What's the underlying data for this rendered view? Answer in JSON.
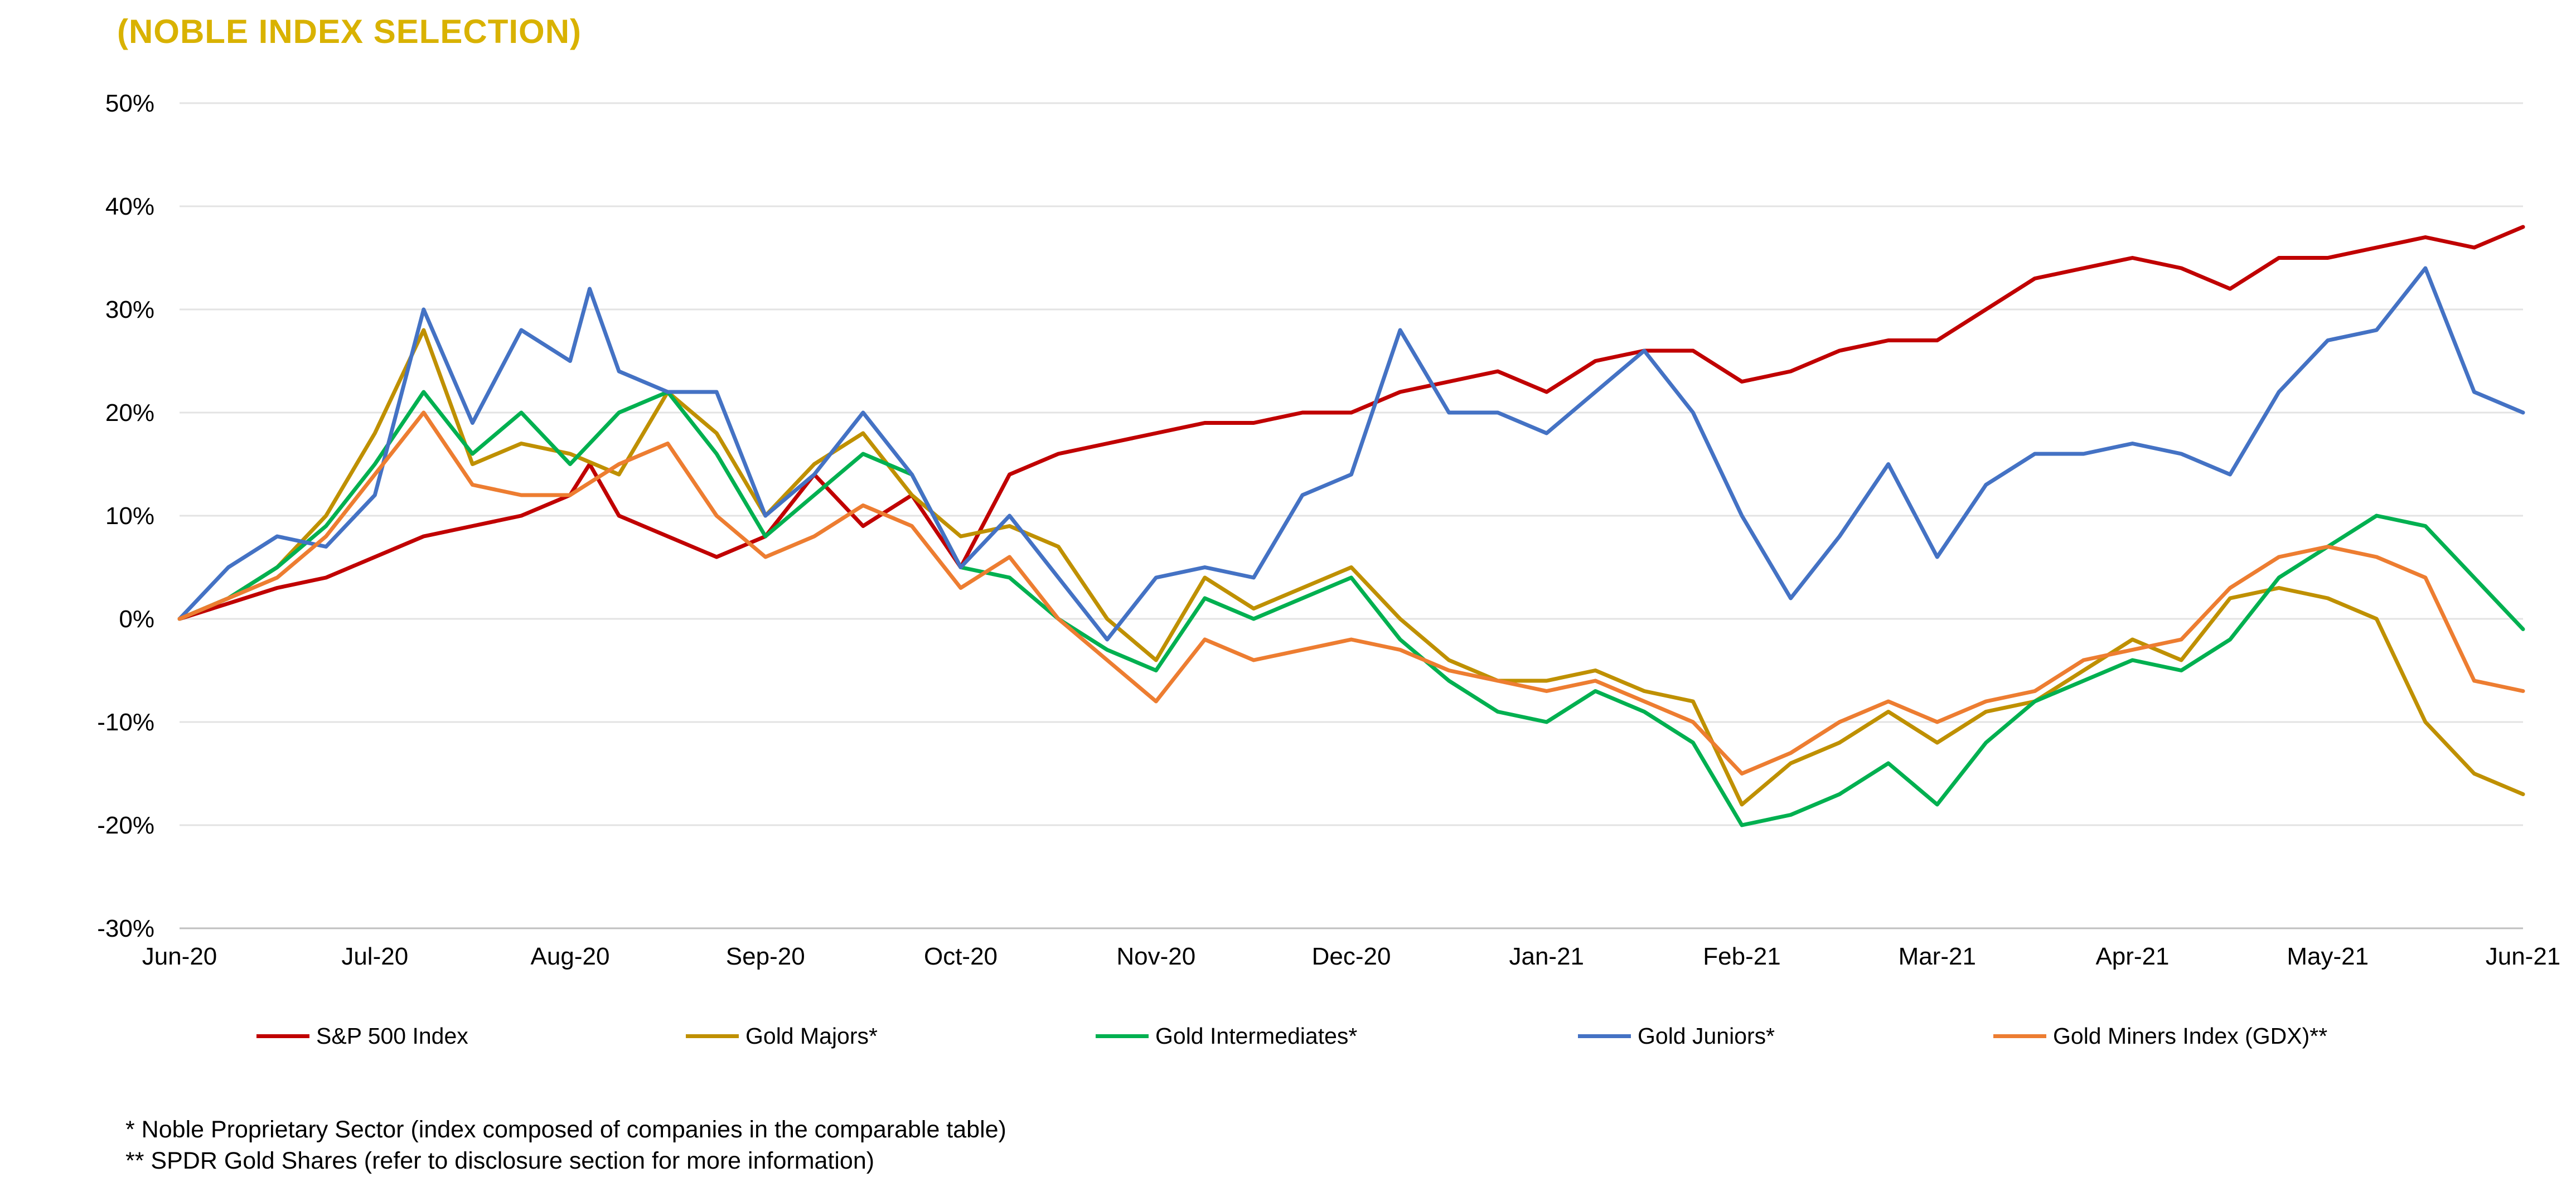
{
  "title": "(NOBLE INDEX SELECTION)",
  "footnotes": [
    "* Noble Proprietary Sector (index composed of companies in the comparable table)",
    "** SPDR Gold Shares (refer to disclosure section for more information)"
  ],
  "chart_data": {
    "type": "line",
    "title": "(NOBLE INDEX SELECTION)",
    "xlabel": "",
    "ylabel": "",
    "x_ticks": [
      "Jun-20",
      "Jul-20",
      "Aug-20",
      "Sep-20",
      "Oct-20",
      "Nov-20",
      "Dec-20",
      "Jan-21",
      "Feb-21",
      "Mar-21",
      "Apr-21",
      "May-21",
      "Jun-21"
    ],
    "y_ticks": [
      "-30%",
      "-20%",
      "-10%",
      "0%",
      "10%",
      "20%",
      "30%",
      "40%",
      "50%"
    ],
    "ylim": [
      -30,
      50
    ],
    "xlim": [
      0,
      12
    ],
    "x_unit": "months since Jun-20",
    "grid": "horizontal",
    "legend_position": "bottom",
    "series": [
      {
        "name": "S&P 500 Index",
        "color": "#c00000",
        "points": [
          [
            0,
            0
          ],
          [
            0.25,
            1.5
          ],
          [
            0.5,
            3
          ],
          [
            0.75,
            4
          ],
          [
            1,
            6
          ],
          [
            1.25,
            8
          ],
          [
            1.5,
            9
          ],
          [
            1.75,
            10
          ],
          [
            2,
            12
          ],
          [
            2.1,
            15
          ],
          [
            2.25,
            10
          ],
          [
            2.5,
            8
          ],
          [
            2.75,
            6
          ],
          [
            3,
            8
          ],
          [
            3.25,
            14
          ],
          [
            3.5,
            9
          ],
          [
            3.75,
            12
          ],
          [
            4,
            5
          ],
          [
            4.25,
            14
          ],
          [
            4.5,
            16
          ],
          [
            4.75,
            17
          ],
          [
            5,
            18
          ],
          [
            5.25,
            19
          ],
          [
            5.5,
            19
          ],
          [
            5.75,
            20
          ],
          [
            6,
            20
          ],
          [
            6.25,
            22
          ],
          [
            6.5,
            23
          ],
          [
            6.75,
            24
          ],
          [
            7,
            22
          ],
          [
            7.25,
            25
          ],
          [
            7.5,
            26
          ],
          [
            7.75,
            26
          ],
          [
            8,
            23
          ],
          [
            8.25,
            24
          ],
          [
            8.5,
            26
          ],
          [
            8.75,
            27
          ],
          [
            9,
            27
          ],
          [
            9.25,
            30
          ],
          [
            9.5,
            33
          ],
          [
            9.75,
            34
          ],
          [
            10,
            35
          ],
          [
            10.25,
            34
          ],
          [
            10.5,
            32
          ],
          [
            10.75,
            35
          ],
          [
            11,
            35
          ],
          [
            11.25,
            36
          ],
          [
            11.5,
            37
          ],
          [
            11.75,
            36
          ],
          [
            12,
            38
          ]
        ]
      },
      {
        "name": "Gold Majors*",
        "color": "#bf9000",
        "points": [
          [
            0,
            0
          ],
          [
            0.25,
            2
          ],
          [
            0.5,
            5
          ],
          [
            0.75,
            10
          ],
          [
            1,
            18
          ],
          [
            1.25,
            28
          ],
          [
            1.5,
            15
          ],
          [
            1.75,
            17
          ],
          [
            2,
            16
          ],
          [
            2.25,
            14
          ],
          [
            2.5,
            22
          ],
          [
            2.75,
            18
          ],
          [
            3,
            10
          ],
          [
            3.25,
            15
          ],
          [
            3.5,
            18
          ],
          [
            3.75,
            12
          ],
          [
            4,
            8
          ],
          [
            4.25,
            9
          ],
          [
            4.5,
            7
          ],
          [
            4.75,
            0
          ],
          [
            5,
            -4
          ],
          [
            5.25,
            4
          ],
          [
            5.5,
            1
          ],
          [
            5.75,
            3
          ],
          [
            6,
            5
          ],
          [
            6.25,
            0
          ],
          [
            6.5,
            -4
          ],
          [
            6.75,
            -6
          ],
          [
            7,
            -6
          ],
          [
            7.25,
            -5
          ],
          [
            7.5,
            -7
          ],
          [
            7.75,
            -8
          ],
          [
            8,
            -18
          ],
          [
            8.25,
            -14
          ],
          [
            8.5,
            -12
          ],
          [
            8.75,
            -9
          ],
          [
            9,
            -12
          ],
          [
            9.25,
            -9
          ],
          [
            9.5,
            -8
          ],
          [
            9.75,
            -5
          ],
          [
            10,
            -2
          ],
          [
            10.25,
            -4
          ],
          [
            10.5,
            2
          ],
          [
            10.75,
            3
          ],
          [
            11,
            2
          ],
          [
            11.25,
            0
          ],
          [
            11.5,
            -10
          ],
          [
            11.75,
            -15
          ],
          [
            12,
            -17
          ]
        ]
      },
      {
        "name": "Gold Intermediates*",
        "color": "#00b050",
        "points": [
          [
            0,
            0
          ],
          [
            0.25,
            2
          ],
          [
            0.5,
            5
          ],
          [
            0.75,
            9
          ],
          [
            1,
            15
          ],
          [
            1.25,
            22
          ],
          [
            1.5,
            16
          ],
          [
            1.75,
            20
          ],
          [
            2,
            15
          ],
          [
            2.25,
            20
          ],
          [
            2.5,
            22
          ],
          [
            2.75,
            16
          ],
          [
            3,
            8
          ],
          [
            3.25,
            12
          ],
          [
            3.5,
            16
          ],
          [
            3.75,
            14
          ],
          [
            4,
            5
          ],
          [
            4.25,
            4
          ],
          [
            4.5,
            0
          ],
          [
            4.75,
            -3
          ],
          [
            5,
            -5
          ],
          [
            5.25,
            2
          ],
          [
            5.5,
            0
          ],
          [
            5.75,
            2
          ],
          [
            6,
            4
          ],
          [
            6.25,
            -2
          ],
          [
            6.5,
            -6
          ],
          [
            6.75,
            -9
          ],
          [
            7,
            -10
          ],
          [
            7.25,
            -7
          ],
          [
            7.5,
            -9
          ],
          [
            7.75,
            -12
          ],
          [
            8,
            -20
          ],
          [
            8.25,
            -19
          ],
          [
            8.5,
            -17
          ],
          [
            8.75,
            -14
          ],
          [
            9,
            -18
          ],
          [
            9.25,
            -12
          ],
          [
            9.5,
            -8
          ],
          [
            9.75,
            -6
          ],
          [
            10,
            -4
          ],
          [
            10.25,
            -5
          ],
          [
            10.5,
            -2
          ],
          [
            10.75,
            4
          ],
          [
            11,
            7
          ],
          [
            11.25,
            10
          ],
          [
            11.5,
            9
          ],
          [
            11.75,
            4
          ],
          [
            12,
            -1
          ]
        ]
      },
      {
        "name": "Gold Juniors*",
        "color": "#4472c4",
        "points": [
          [
            0,
            0
          ],
          [
            0.25,
            5
          ],
          [
            0.5,
            8
          ],
          [
            0.75,
            7
          ],
          [
            1,
            12
          ],
          [
            1.25,
            30
          ],
          [
            1.5,
            19
          ],
          [
            1.75,
            28
          ],
          [
            2,
            25
          ],
          [
            2.1,
            32
          ],
          [
            2.25,
            24
          ],
          [
            2.5,
            22
          ],
          [
            2.75,
            22
          ],
          [
            3,
            10
          ],
          [
            3.25,
            14
          ],
          [
            3.5,
            20
          ],
          [
            3.75,
            14
          ],
          [
            4,
            5
          ],
          [
            4.25,
            10
          ],
          [
            4.5,
            4
          ],
          [
            4.75,
            -2
          ],
          [
            5,
            4
          ],
          [
            5.25,
            5
          ],
          [
            5.5,
            4
          ],
          [
            5.75,
            12
          ],
          [
            6,
            14
          ],
          [
            6.25,
            28
          ],
          [
            6.5,
            20
          ],
          [
            6.75,
            20
          ],
          [
            7,
            18
          ],
          [
            7.25,
            22
          ],
          [
            7.5,
            26
          ],
          [
            7.75,
            20
          ],
          [
            8,
            10
          ],
          [
            8.25,
            2
          ],
          [
            8.5,
            8
          ],
          [
            8.75,
            15
          ],
          [
            9,
            6
          ],
          [
            9.25,
            13
          ],
          [
            9.5,
            16
          ],
          [
            9.75,
            16
          ],
          [
            10,
            17
          ],
          [
            10.25,
            16
          ],
          [
            10.5,
            14
          ],
          [
            10.75,
            22
          ],
          [
            11,
            27
          ],
          [
            11.25,
            28
          ],
          [
            11.5,
            34
          ],
          [
            11.75,
            22
          ],
          [
            12,
            20
          ]
        ]
      },
      {
        "name": "Gold Miners Index (GDX)**",
        "color": "#ed7d31",
        "points": [
          [
            0,
            0
          ],
          [
            0.25,
            2
          ],
          [
            0.5,
            4
          ],
          [
            0.75,
            8
          ],
          [
            1,
            14
          ],
          [
            1.25,
            20
          ],
          [
            1.5,
            13
          ],
          [
            1.75,
            12
          ],
          [
            2,
            12
          ],
          [
            2.25,
            15
          ],
          [
            2.5,
            17
          ],
          [
            2.75,
            10
          ],
          [
            3,
            6
          ],
          [
            3.25,
            8
          ],
          [
            3.5,
            11
          ],
          [
            3.75,
            9
          ],
          [
            4,
            3
          ],
          [
            4.25,
            6
          ],
          [
            4.5,
            0
          ],
          [
            4.75,
            -4
          ],
          [
            5,
            -8
          ],
          [
            5.25,
            -2
          ],
          [
            5.5,
            -4
          ],
          [
            5.75,
            -3
          ],
          [
            6,
            -2
          ],
          [
            6.25,
            -3
          ],
          [
            6.5,
            -5
          ],
          [
            6.75,
            -6
          ],
          [
            7,
            -7
          ],
          [
            7.25,
            -6
          ],
          [
            7.5,
            -8
          ],
          [
            7.75,
            -10
          ],
          [
            8,
            -15
          ],
          [
            8.25,
            -13
          ],
          [
            8.5,
            -10
          ],
          [
            8.75,
            -8
          ],
          [
            9,
            -10
          ],
          [
            9.25,
            -8
          ],
          [
            9.5,
            -7
          ],
          [
            9.75,
            -4
          ],
          [
            10,
            -3
          ],
          [
            10.25,
            -2
          ],
          [
            10.5,
            3
          ],
          [
            10.75,
            6
          ],
          [
            11,
            7
          ],
          [
            11.25,
            6
          ],
          [
            11.5,
            4
          ],
          [
            11.75,
            -6
          ],
          [
            12,
            -7
          ]
        ]
      }
    ]
  }
}
